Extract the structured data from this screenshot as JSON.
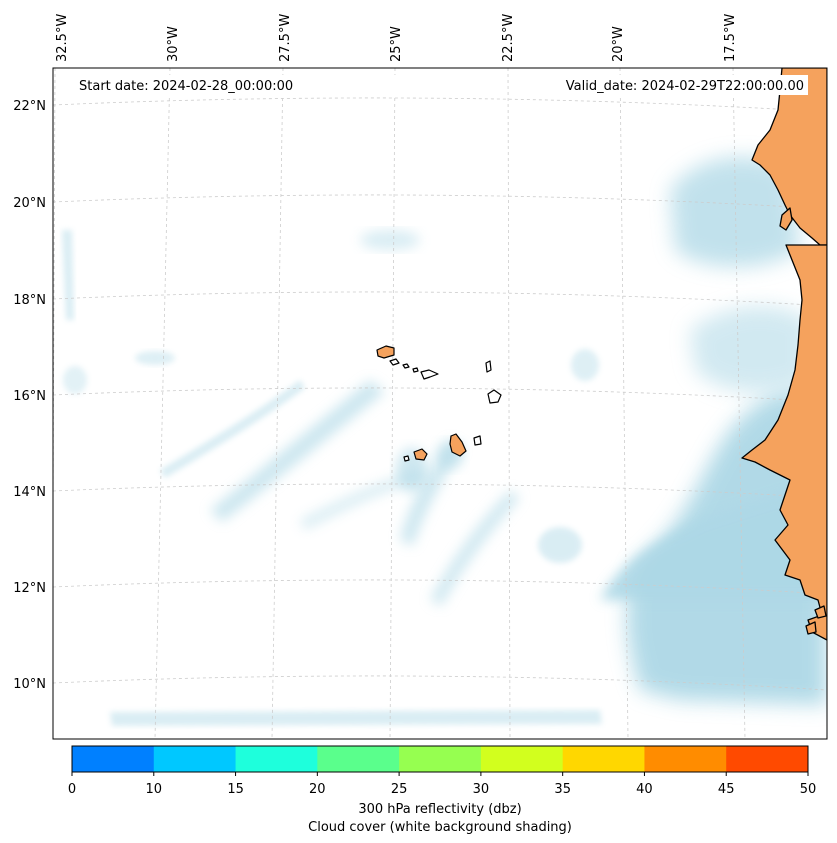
{
  "annotations": {
    "start_date": "Start date: 2024-02-28_00:00:00",
    "valid_date": "Valid_date: 2024-02-29T22:00:00.00"
  },
  "longitude_labels": [
    "32.5°W",
    "30°W",
    "27.5°W",
    "25°W",
    "22.5°W",
    "20°W",
    "17.5°W"
  ],
  "latitude_labels": [
    "22°N",
    "20°N",
    "18°N",
    "16°N",
    "14°N",
    "12°N",
    "10°N"
  ],
  "colorbar": {
    "ticks": [
      "0",
      "10",
      "15",
      "20",
      "25",
      "30",
      "35",
      "40",
      "45",
      "50"
    ],
    "colors": [
      "#0080ff",
      "#00c8ff",
      "#1effdc",
      "#5aff8c",
      "#96ff50",
      "#d2ff1e",
      "#ffd700",
      "#ff8c00",
      "#ff4a00"
    ],
    "label_line1": "300 hPa reflectivity (dbz)",
    "label_line2": "Cloud cover (white background shading)"
  },
  "palette": {
    "land": "#f5a25d",
    "cloud": "#add8e6",
    "coast": "#000000",
    "grid": "#cccccc"
  }
}
